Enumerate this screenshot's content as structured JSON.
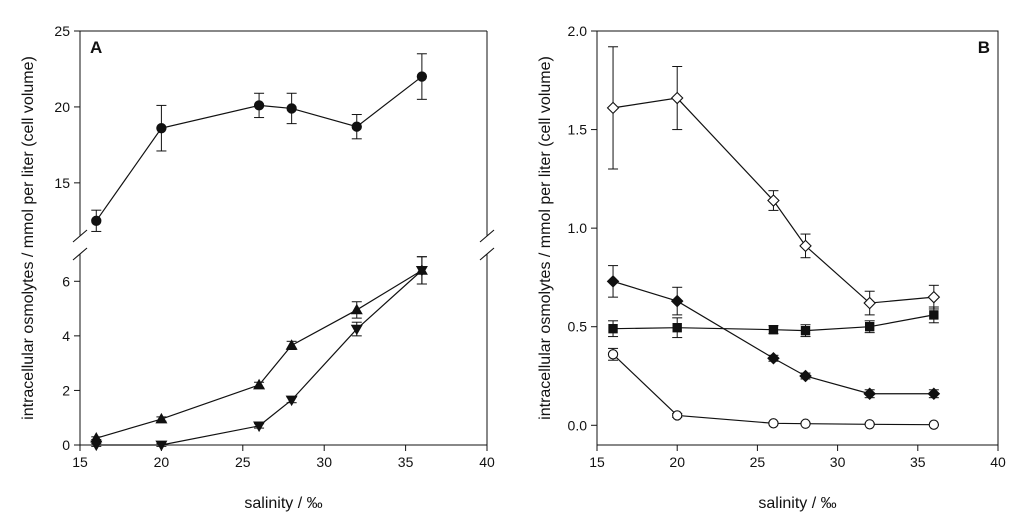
{
  "chart_data": [
    {
      "panel": "A",
      "type": "line",
      "xlabel": "salinity / ‰",
      "ylabel": "intracellular osmolytes / mmol per liter (cell volume)",
      "xlim": [
        15,
        40
      ],
      "x_ticks": [
        15,
        20,
        25,
        30,
        35,
        40
      ],
      "broken_y_axis": true,
      "upper_ylim": [
        11.5,
        25
      ],
      "upper_y_ticks": [
        15,
        20,
        25
      ],
      "lower_ylim": [
        0,
        7
      ],
      "lower_y_ticks": [
        0,
        2,
        4,
        6
      ],
      "series": [
        {
          "name": "filled-circle",
          "marker": "circle",
          "filled": true,
          "segment": "upper",
          "x": [
            16,
            20,
            26,
            28,
            32,
            36
          ],
          "y": [
            12.5,
            18.6,
            20.1,
            19.9,
            18.7,
            22.0
          ],
          "err": [
            0.7,
            1.5,
            0.8,
            1.0,
            0.8,
            1.5
          ]
        },
        {
          "name": "triangle-up",
          "marker": "triangle-up",
          "filled": true,
          "segment": "lower",
          "x": [
            16,
            20,
            26,
            28,
            32,
            36
          ],
          "y": [
            0.25,
            0.95,
            2.2,
            3.65,
            4.95,
            6.4
          ],
          "err": [
            0.05,
            0.08,
            0.1,
            0.15,
            0.3,
            0.5
          ]
        },
        {
          "name": "triangle-down",
          "marker": "triangle-down",
          "filled": true,
          "segment": "lower",
          "x": [
            16,
            20,
            26,
            28,
            32,
            36
          ],
          "y": [
            0.0,
            0.0,
            0.7,
            1.65,
            4.25,
            6.4
          ],
          "err": [
            0.05,
            0.05,
            0.08,
            0.1,
            0.25,
            0.5
          ]
        }
      ]
    },
    {
      "panel": "B",
      "type": "line",
      "xlabel": "salinity / ‰",
      "ylabel": "intracellular osmolytes / mmol per liter (cell volume)",
      "xlim": [
        15,
        40
      ],
      "x_ticks": [
        15,
        20,
        25,
        30,
        35,
        40
      ],
      "ylim": [
        -0.1,
        2.0
      ],
      "y_ticks": [
        0.0,
        0.5,
        1.0,
        1.5,
        2.0
      ],
      "y_tick_labels": [
        "0.0",
        "0.5",
        "1.0",
        "1.5",
        "2.0"
      ],
      "series": [
        {
          "name": "open-diamond",
          "marker": "diamond",
          "filled": false,
          "x": [
            16,
            20,
            26,
            28,
            32,
            36
          ],
          "y": [
            1.61,
            1.66,
            1.14,
            0.91,
            0.62,
            0.65
          ],
          "err": [
            0.31,
            0.16,
            0.05,
            0.06,
            0.06,
            0.06
          ]
        },
        {
          "name": "filled-diamond",
          "marker": "diamond",
          "filled": true,
          "x": [
            16,
            20,
            26,
            28,
            32,
            36
          ],
          "y": [
            0.73,
            0.63,
            0.34,
            0.25,
            0.16,
            0.16
          ],
          "err": [
            0.08,
            0.07,
            0.015,
            0.015,
            0.02,
            0.02
          ]
        },
        {
          "name": "filled-square",
          "marker": "square",
          "filled": true,
          "x": [
            16,
            20,
            26,
            28,
            32,
            36
          ],
          "y": [
            0.49,
            0.495,
            0.485,
            0.48,
            0.5,
            0.56
          ],
          "err": [
            0.04,
            0.05,
            0.02,
            0.03,
            0.03,
            0.04
          ]
        },
        {
          "name": "open-circle",
          "marker": "circle",
          "filled": false,
          "x": [
            16,
            20,
            26,
            28,
            32,
            36
          ],
          "y": [
            0.36,
            0.05,
            0.01,
            0.008,
            0.005,
            0.003
          ],
          "err": [
            0.03,
            0.01,
            0.005,
            0.004,
            0.003,
            0.002
          ]
        }
      ]
    }
  ]
}
